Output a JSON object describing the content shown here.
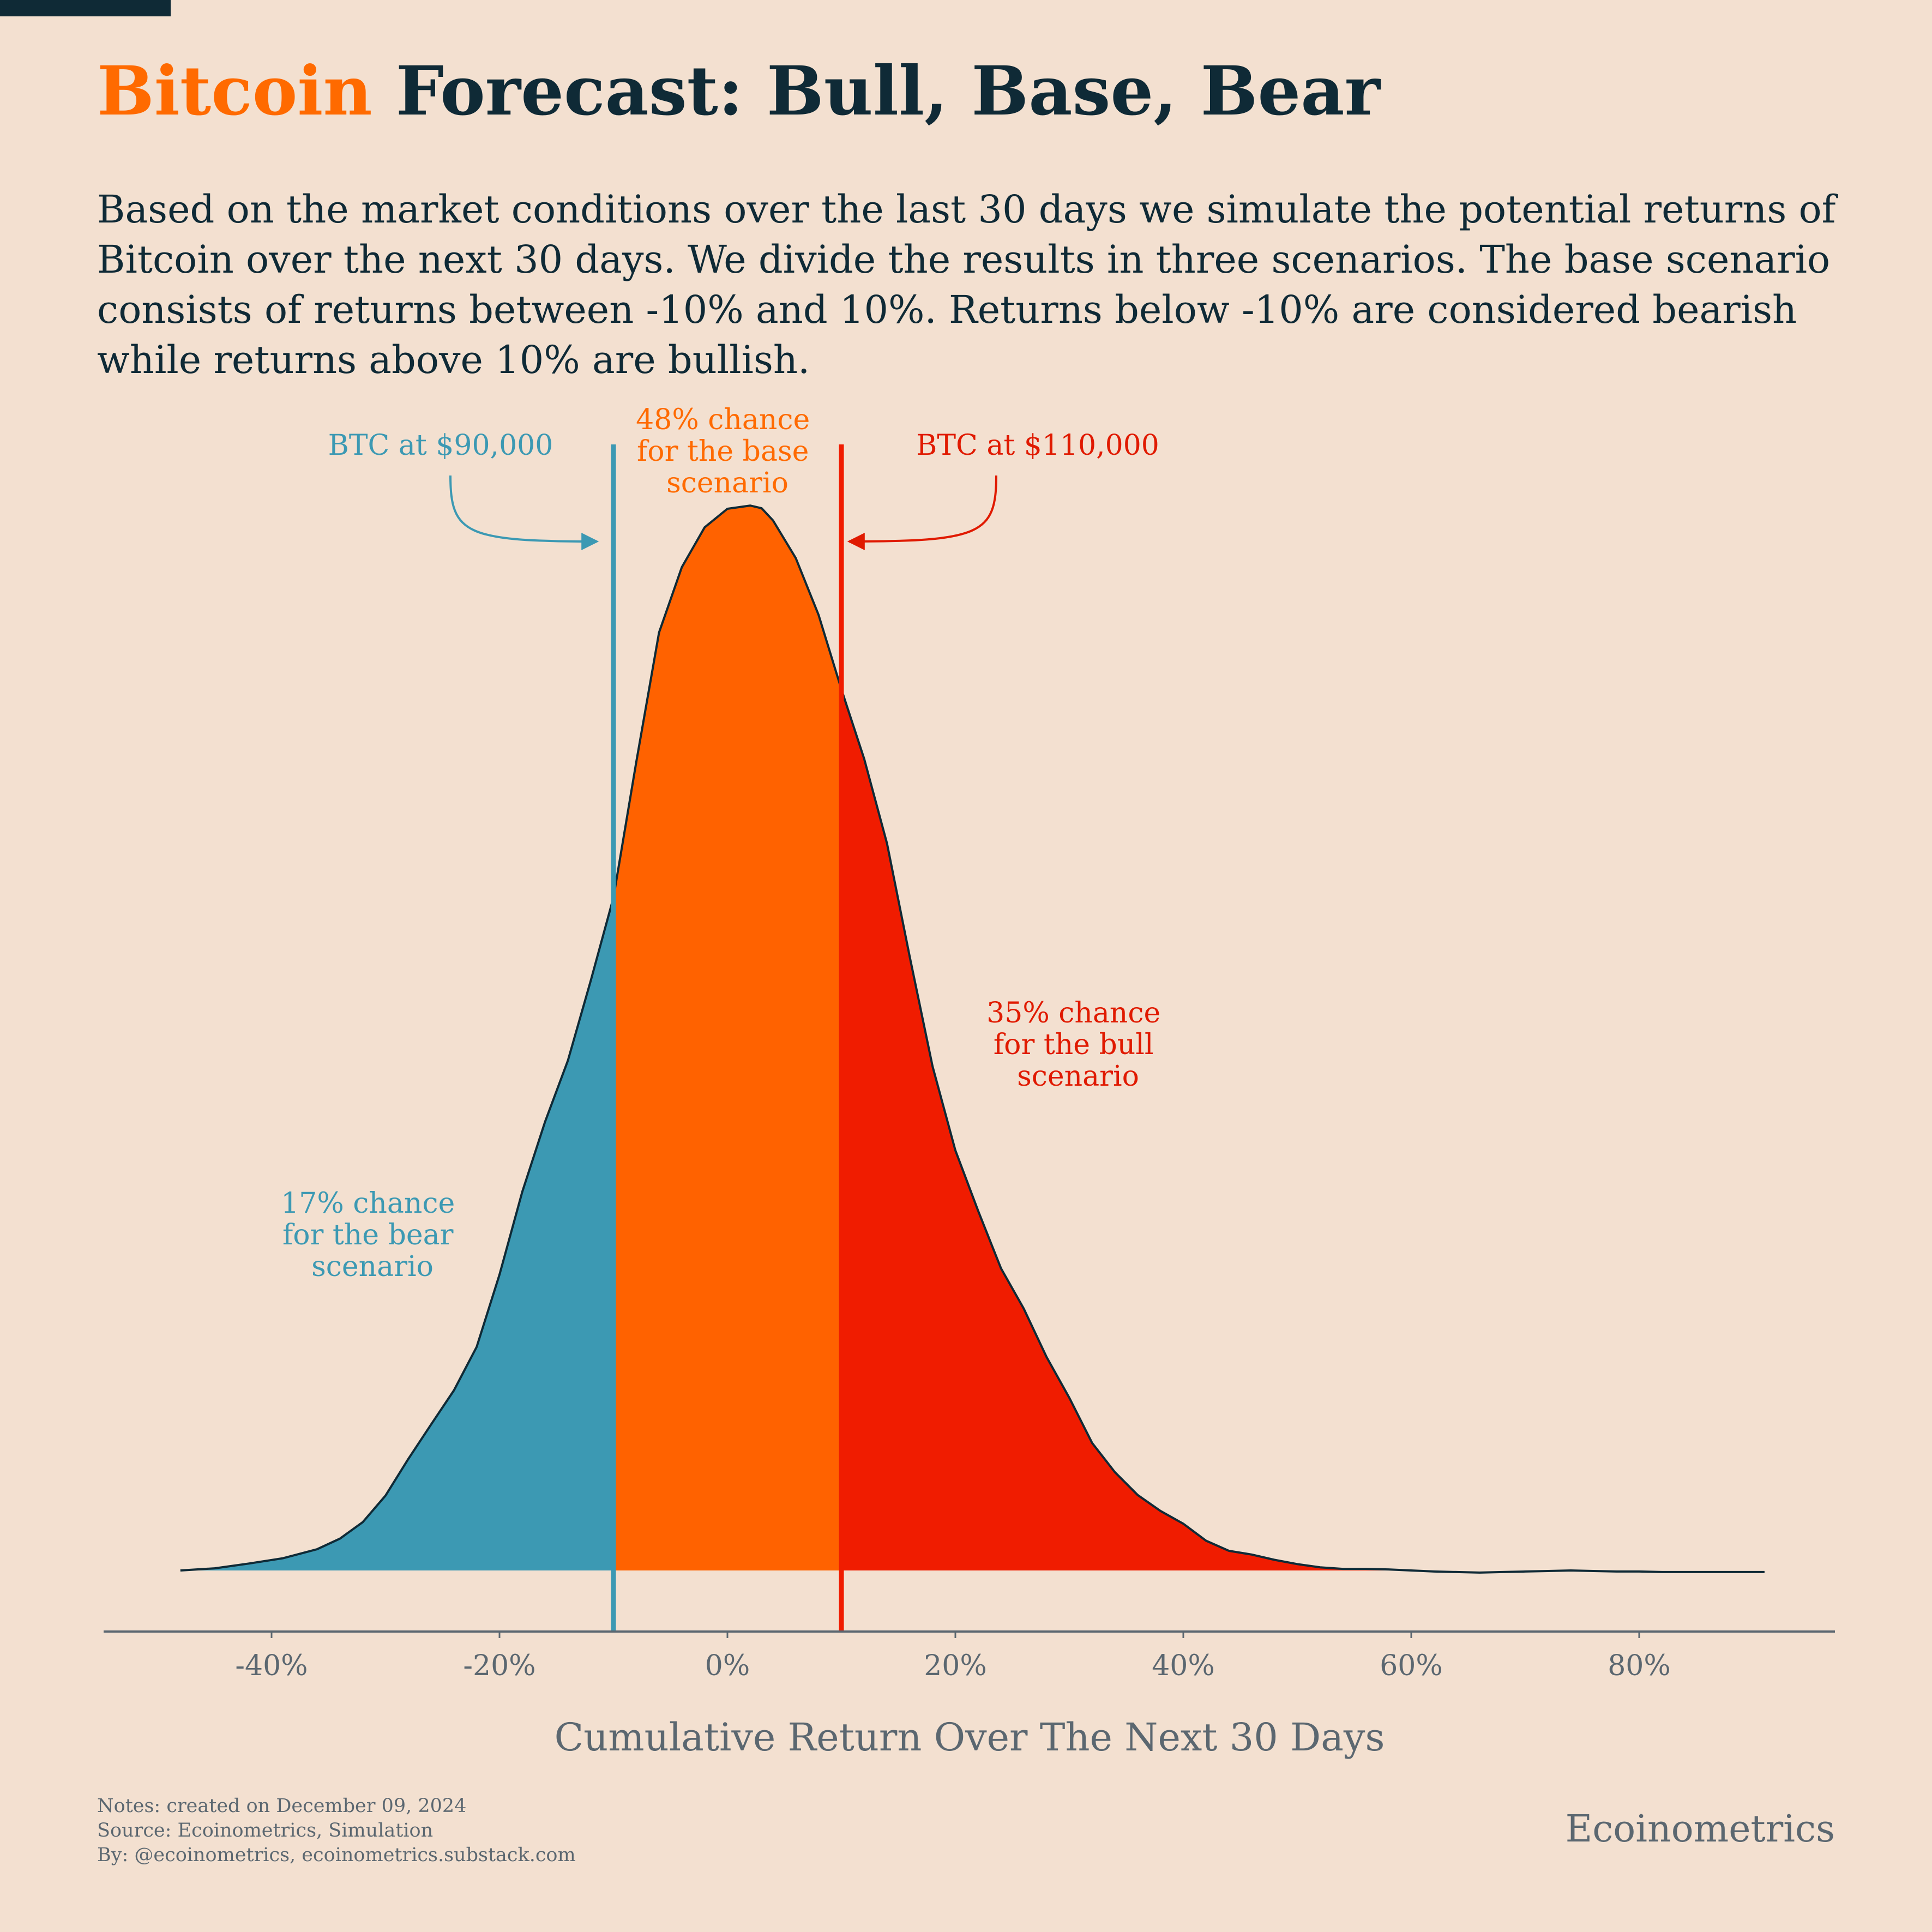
{
  "header": {
    "title_accent": "Bitcoin",
    "title_rest": " Forecast: Bull, Base, Bear",
    "subtitle": "Based on the market conditions over the last 30 days we simulate the potential returns of Bitcoin over the next 30 days. We divide the results in three scenarios. The base scenario consists of returns between -10% and 10%. Returns below -10% are considered bearish while returns above 10% are bullish."
  },
  "chart_data": {
    "type": "area",
    "xlabel": "Cumulative Return Over The Next 30 Days",
    "ylabel": "",
    "xlim": [
      -55,
      97
    ],
    "grid": false,
    "x_ticks": [
      -40,
      -20,
      0,
      20,
      40,
      60,
      80
    ],
    "x_tick_labels": [
      "-40%",
      "-20%",
      "0%",
      "20%",
      "40%",
      "60%",
      "80%"
    ],
    "density": {
      "x": [
        -48,
        -45,
        -42,
        -39,
        -36,
        -34,
        -32,
        -30,
        -28,
        -26,
        -24,
        -22,
        -20,
        -18,
        -16,
        -14,
        -12,
        -10,
        -8,
        -6,
        -4,
        -2,
        0,
        2,
        3,
        4,
        6,
        8,
        10,
        12,
        14,
        16,
        18,
        20,
        22,
        24,
        26,
        28,
        30,
        32,
        34,
        36,
        38,
        40,
        42,
        44,
        46,
        48,
        50,
        52,
        54,
        56,
        58,
        60,
        62,
        64,
        66,
        68,
        70,
        72,
        74,
        76,
        78,
        80,
        82,
        84,
        86,
        88,
        91
      ],
      "y": [
        0.0,
        0.4,
        1.3,
        2.3,
        4.0,
        6.0,
        9.1,
        14.1,
        21.0,
        27.5,
        33.9,
        42.1,
        55.7,
        71.3,
        84.5,
        96.0,
        111.0,
        126.7,
        152.2,
        176.6,
        188.9,
        196.4,
        199.9,
        200.5,
        200.0,
        197.7,
        190.6,
        179.9,
        165.9,
        152.8,
        136.9,
        115.5,
        94.9,
        79.1,
        67.7,
        56.9,
        49.3,
        40.2,
        32.5,
        24.0,
        18.5,
        14.2,
        11.2,
        8.8,
        5.6,
        3.7,
        3.0,
        2.0,
        1.2,
        0.6,
        0.3,
        0.3,
        0.2,
        0.0,
        -0.2,
        -0.3,
        -0.4,
        -0.3,
        -0.2,
        -0.1,
        0.0,
        -0.1,
        -0.2,
        -0.2,
        -0.3,
        -0.3,
        -0.3,
        -0.3,
        -0.3
      ]
    },
    "regions": [
      {
        "name": "bear",
        "from": -48,
        "to": -10,
        "color": "#3c99b3"
      },
      {
        "name": "base",
        "from": -10,
        "to": 10,
        "color": "#ff6200"
      },
      {
        "name": "bull",
        "from": 10,
        "to": 91,
        "color": "#f01c00"
      }
    ],
    "vlines": [
      {
        "x": -10,
        "color": "#3c99b3"
      },
      {
        "x": 10,
        "color": "#f01c00"
      }
    ],
    "annotations": {
      "bear_price": {
        "text": "BTC at $90,000",
        "color": "#3c99b3"
      },
      "bull_price": {
        "text": "BTC at $110,000",
        "color": "#e01a00"
      },
      "base_chance": {
        "lines": [
          "48% chance",
          "for the base",
          "scenario"
        ],
        "color": "#ff6a00"
      },
      "bear_chance": {
        "lines": [
          "17% chance",
          "for the bear",
          "scenario"
        ],
        "color": "#3c99b3"
      },
      "bull_chance": {
        "lines": [
          "35% chance",
          "for the bull",
          "scenario"
        ],
        "color": "#e01a00"
      }
    },
    "axis_color": "#5b6770"
  },
  "footer": {
    "notes": "Notes: created on December 09, 2024",
    "source": "Source: Ecoinometrics, Simulation",
    "by": "By: @ecoinometrics, ecoinometrics.substack.com",
    "brand": "Ecoinometrics"
  }
}
